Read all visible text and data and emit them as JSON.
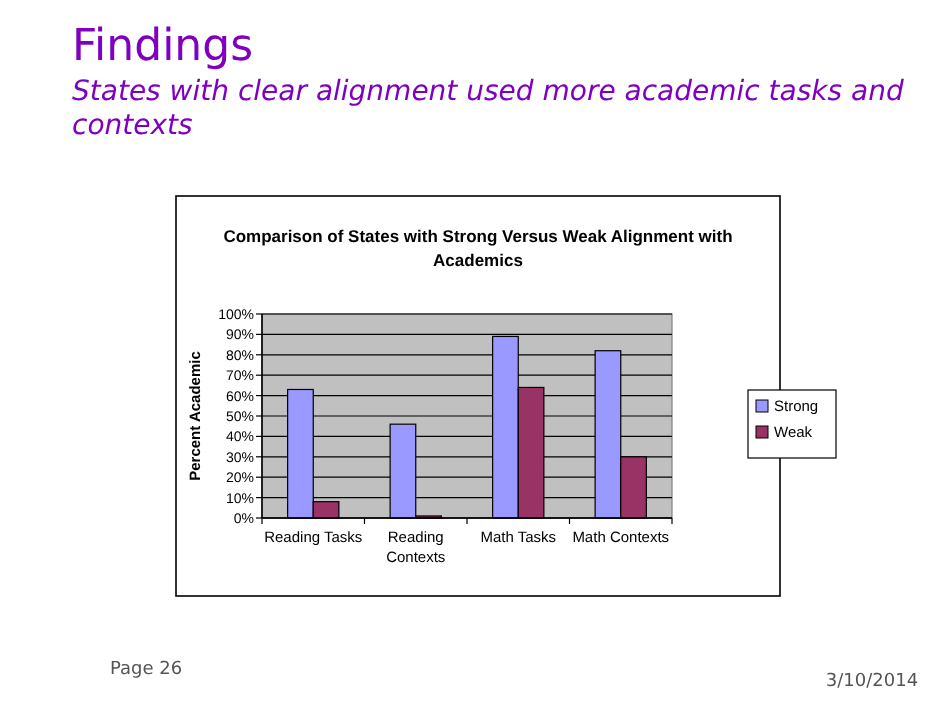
{
  "chart_data": {
    "type": "bar",
    "title": "Comparison of States with Strong Versus Weak Alignment with Academics",
    "ylabel": "Percent Academic",
    "categories": [
      "Reading Tasks",
      "Reading Contexts",
      "Math Tasks",
      "Math Contexts"
    ],
    "series": [
      {
        "name": "Strong",
        "color": "#9999ff",
        "values": [
          63,
          46,
          89,
          82
        ]
      },
      {
        "name": "Weak",
        "color": "#993366",
        "values": [
          8,
          1,
          64,
          30
        ]
      }
    ],
    "ylim": [
      0,
      100
    ],
    "yticks": [
      {
        "value": 0,
        "label": "0%"
      },
      {
        "value": 10,
        "label": "10%"
      },
      {
        "value": 20,
        "label": "20%"
      },
      {
        "value": 30,
        "label": "30%"
      },
      {
        "value": 40,
        "label": "40%"
      },
      {
        "value": 50,
        "label": "50%"
      },
      {
        "value": 60,
        "label": "60%"
      },
      {
        "value": 70,
        "label": "70%"
      },
      {
        "value": 80,
        "label": "80%"
      },
      {
        "value": 90,
        "label": "90%"
      },
      {
        "value": 100,
        "label": "100%"
      }
    ],
    "grid": "y",
    "legend": "right",
    "annotations": [
      "Findings",
      "States with clear alignment used more academic tasks and contexts",
      "Page 26",
      "3/10/2014"
    ]
  }
}
